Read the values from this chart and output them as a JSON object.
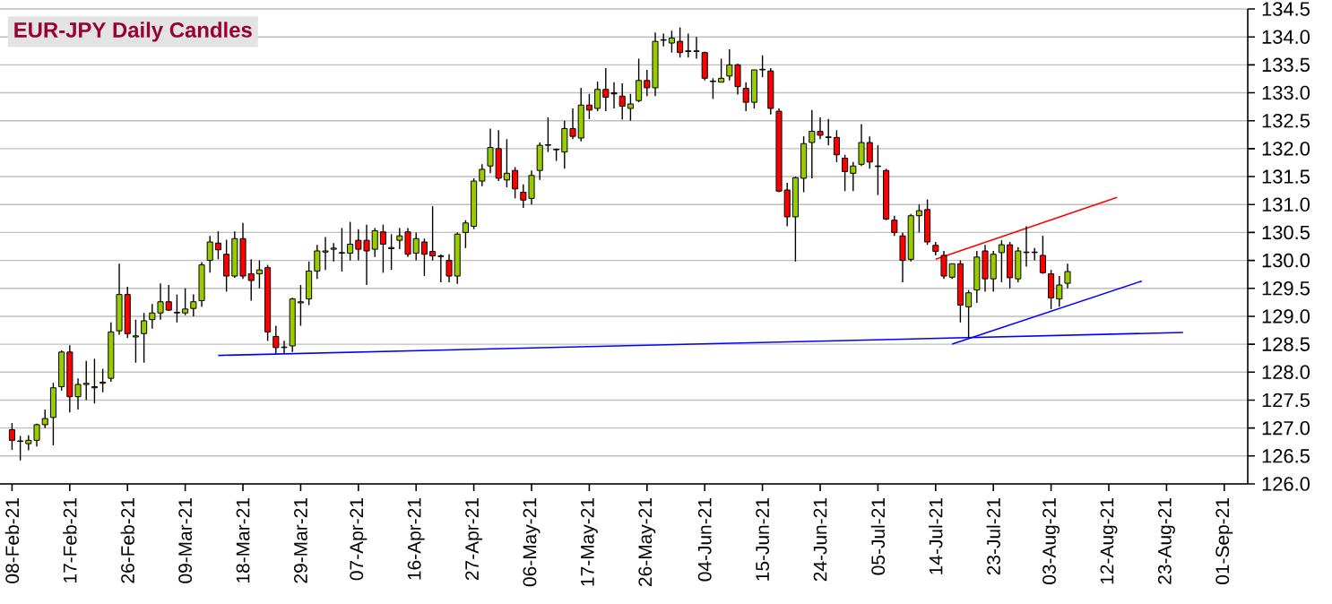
{
  "chart_data": {
    "type": "candlestick",
    "title": "EUR-JPY Daily Candles",
    "categories": [
      "08-Feb-21",
      null,
      null,
      null,
      null,
      null,
      null,
      "17-Feb-21",
      null,
      null,
      null,
      null,
      null,
      null,
      "26-Feb-21",
      null,
      null,
      null,
      null,
      null,
      null,
      "09-Mar-21",
      null,
      null,
      null,
      null,
      null,
      null,
      "18-Mar-21",
      null,
      null,
      null,
      null,
      null,
      null,
      "29-Mar-21",
      null,
      null,
      null,
      null,
      null,
      null,
      "07-Apr-21",
      null,
      null,
      null,
      null,
      null,
      null,
      "16-Apr-21",
      null,
      null,
      null,
      null,
      null,
      null,
      "27-Apr-21",
      null,
      null,
      null,
      null,
      null,
      null,
      "06-May-21",
      null,
      null,
      null,
      null,
      null,
      null,
      "17-May-21",
      null,
      null,
      null,
      null,
      null,
      null,
      "26-May-21",
      null,
      null,
      null,
      null,
      null,
      null,
      "04-Jun-21",
      null,
      null,
      null,
      null,
      null,
      null,
      "15-Jun-21",
      null,
      null,
      null,
      null,
      null,
      null,
      "24-Jun-21",
      null,
      null,
      null,
      null,
      null,
      null,
      "05-Jul-21",
      null,
      null,
      null,
      null,
      null,
      null,
      "14-Jul-21",
      null,
      null,
      null,
      null,
      null,
      null,
      "23-Jul-21",
      null,
      null,
      null,
      null,
      null,
      null,
      "03-Aug-21",
      null,
      null,
      null,
      null,
      null,
      null,
      "12-Aug-21",
      null,
      null,
      null,
      null,
      null,
      null,
      "23-Aug-21",
      null,
      null,
      null,
      null,
      null,
      null,
      "01-Sep-21"
    ],
    "ohlc": [
      [
        126.97,
        127.09,
        126.61,
        126.78
      ],
      [
        126.76,
        126.86,
        126.42,
        126.77
      ],
      [
        126.72,
        126.87,
        126.6,
        126.78
      ],
      [
        126.78,
        127.08,
        126.67,
        127.06
      ],
      [
        127.06,
        127.33,
        127.0,
        127.17
      ],
      [
        127.19,
        127.81,
        126.69,
        127.72
      ],
      [
        127.74,
        128.39,
        127.67,
        128.36
      ],
      [
        128.36,
        128.48,
        127.28,
        127.56
      ],
      [
        127.56,
        127.89,
        127.33,
        127.78
      ],
      [
        127.78,
        128.2,
        127.5,
        127.8
      ],
      [
        127.72,
        128.24,
        127.44,
        127.74
      ],
      [
        127.8,
        128.06,
        127.64,
        127.82
      ],
      [
        127.89,
        128.89,
        127.83,
        128.72
      ],
      [
        128.74,
        129.94,
        128.67,
        129.39
      ],
      [
        129.39,
        129.53,
        128.61,
        128.69
      ],
      [
        128.63,
        128.94,
        128.17,
        128.65
      ],
      [
        128.69,
        129.06,
        128.17,
        128.92
      ],
      [
        128.94,
        129.22,
        128.78,
        129.06
      ],
      [
        129.06,
        129.59,
        128.94,
        129.26
      ],
      [
        129.26,
        129.56,
        129.1,
        129.11
      ],
      [
        129.06,
        129.39,
        128.89,
        129.07
      ],
      [
        129.06,
        129.5,
        129.02,
        129.13
      ],
      [
        129.14,
        129.39,
        129.0,
        129.26
      ],
      [
        129.28,
        129.97,
        129.17,
        129.92
      ],
      [
        130.0,
        130.44,
        129.78,
        130.33
      ],
      [
        130.31,
        130.52,
        130.02,
        130.19
      ],
      [
        130.11,
        130.37,
        129.44,
        129.72
      ],
      [
        129.72,
        130.52,
        129.69,
        130.39
      ],
      [
        130.39,
        130.67,
        129.67,
        129.72
      ],
      [
        129.76,
        130.02,
        129.28,
        129.64
      ],
      [
        129.76,
        130.0,
        129.5,
        129.83
      ],
      [
        129.87,
        129.92,
        128.56,
        128.72
      ],
      [
        128.64,
        128.83,
        128.33,
        128.44
      ],
      [
        128.45,
        128.56,
        128.33,
        128.44
      ],
      [
        128.47,
        129.33,
        128.36,
        129.31
      ],
      [
        129.24,
        129.56,
        128.83,
        129.26
      ],
      [
        129.31,
        129.98,
        129.2,
        129.81
      ],
      [
        129.81,
        130.28,
        129.67,
        130.17
      ],
      [
        130.15,
        130.42,
        129.83,
        130.17
      ],
      [
        130.2,
        130.31,
        129.98,
        130.22
      ],
      [
        130.14,
        130.58,
        129.8,
        130.13
      ],
      [
        130.13,
        130.69,
        130.0,
        130.29
      ],
      [
        130.36,
        130.56,
        130.0,
        130.2
      ],
      [
        130.36,
        130.64,
        129.56,
        130.17
      ],
      [
        130.2,
        130.58,
        130.06,
        130.53
      ],
      [
        130.51,
        130.64,
        129.78,
        130.29
      ],
      [
        130.21,
        130.47,
        129.83,
        130.23
      ],
      [
        130.36,
        130.58,
        130.2,
        130.44
      ],
      [
        130.51,
        130.58,
        130.06,
        130.11
      ],
      [
        130.13,
        130.5,
        130.0,
        130.39
      ],
      [
        130.33,
        130.39,
        129.72,
        130.11
      ],
      [
        130.16,
        130.97,
        130.0,
        130.08
      ],
      [
        130.08,
        130.11,
        129.61,
        130.07
      ],
      [
        130.0,
        130.11,
        129.61,
        129.72
      ],
      [
        129.72,
        130.5,
        129.58,
        130.47
      ],
      [
        130.5,
        130.72,
        130.22,
        130.67
      ],
      [
        130.61,
        131.47,
        130.56,
        131.42
      ],
      [
        131.42,
        131.72,
        131.33,
        131.63
      ],
      [
        131.69,
        132.36,
        131.56,
        132.02
      ],
      [
        132.0,
        132.33,
        131.42,
        131.47
      ],
      [
        131.44,
        132.17,
        131.31,
        131.56
      ],
      [
        131.61,
        131.67,
        131.11,
        131.28
      ],
      [
        131.22,
        131.36,
        130.94,
        131.08
      ],
      [
        131.11,
        131.61,
        131.0,
        131.52
      ],
      [
        131.61,
        132.11,
        131.44,
        132.06
      ],
      [
        132.06,
        132.56,
        131.94,
        132.07
      ],
      [
        131.98,
        132.0,
        131.78,
        131.99
      ],
      [
        131.94,
        132.5,
        131.64,
        132.36
      ],
      [
        132.36,
        132.72,
        132.17,
        132.22
      ],
      [
        132.19,
        133.09,
        132.13,
        132.78
      ],
      [
        132.78,
        132.98,
        132.53,
        132.69
      ],
      [
        132.72,
        133.2,
        132.67,
        133.06
      ],
      [
        133.06,
        133.44,
        132.67,
        132.92
      ],
      [
        133.0,
        133.19,
        132.72,
        132.98
      ],
      [
        132.94,
        133.17,
        132.52,
        132.76
      ],
      [
        132.72,
        132.98,
        132.5,
        132.8
      ],
      [
        132.86,
        133.61,
        132.83,
        133.22
      ],
      [
        133.22,
        133.41,
        132.94,
        133.09
      ],
      [
        133.09,
        134.08,
        132.94,
        133.92
      ],
      [
        133.94,
        134.06,
        133.83,
        133.95
      ],
      [
        133.89,
        134.11,
        133.72,
        133.98
      ],
      [
        133.92,
        134.17,
        133.63,
        133.72
      ],
      [
        133.75,
        134.06,
        133.63,
        133.74
      ],
      [
        133.74,
        134.0,
        133.61,
        133.75
      ],
      [
        133.72,
        133.74,
        133.22,
        133.26
      ],
      [
        133.2,
        133.26,
        132.89,
        133.21
      ],
      [
        133.19,
        133.61,
        133.19,
        133.26
      ],
      [
        133.3,
        133.78,
        133.22,
        133.5
      ],
      [
        133.5,
        133.52,
        132.97,
        133.11
      ],
      [
        133.08,
        133.19,
        132.67,
        132.83
      ],
      [
        132.83,
        133.41,
        132.72,
        133.41
      ],
      [
        133.41,
        133.67,
        133.28,
        133.42
      ],
      [
        133.39,
        133.44,
        132.61,
        132.72
      ],
      [
        132.67,
        132.72,
        131.22,
        131.24
      ],
      [
        131.26,
        131.39,
        130.61,
        130.78
      ],
      [
        130.78,
        131.5,
        129.98,
        131.48
      ],
      [
        131.47,
        132.22,
        131.22,
        132.09
      ],
      [
        132.11,
        132.69,
        131.47,
        132.31
      ],
      [
        132.31,
        132.56,
        132.17,
        132.24
      ],
      [
        132.2,
        132.53,
        132.06,
        132.21
      ],
      [
        132.2,
        132.33,
        131.76,
        131.89
      ],
      [
        131.83,
        131.89,
        131.24,
        131.59
      ],
      [
        131.56,
        131.76,
        131.24,
        131.69
      ],
      [
        131.72,
        132.44,
        131.69,
        132.11
      ],
      [
        132.11,
        132.22,
        131.64,
        131.76
      ],
      [
        131.69,
        132.06,
        131.17,
        131.68
      ],
      [
        131.61,
        131.64,
        130.72,
        130.74
      ],
      [
        130.72,
        130.8,
        130.44,
        130.5
      ],
      [
        130.44,
        130.5,
        129.61,
        130.0
      ],
      [
        130.02,
        130.83,
        129.98,
        130.8
      ],
      [
        130.8,
        131.0,
        130.5,
        130.89
      ],
      [
        130.91,
        131.09,
        130.28,
        130.33
      ],
      [
        130.27,
        130.33,
        130.09,
        130.16
      ],
      [
        130.09,
        130.17,
        129.67,
        129.72
      ],
      [
        129.7,
        129.94,
        129.67,
        129.94
      ],
      [
        129.94,
        130.0,
        128.89,
        129.2
      ],
      [
        129.17,
        129.47,
        128.61,
        129.42
      ],
      [
        129.47,
        130.17,
        129.24,
        130.06
      ],
      [
        130.17,
        130.28,
        129.44,
        129.67
      ],
      [
        129.67,
        130.17,
        129.44,
        130.11
      ],
      [
        130.14,
        130.36,
        129.61,
        130.28
      ],
      [
        130.28,
        130.33,
        129.5,
        129.69
      ],
      [
        129.67,
        130.24,
        129.61,
        130.17
      ],
      [
        130.14,
        130.61,
        129.89,
        130.15
      ],
      [
        130.15,
        130.22,
        130.0,
        130.14
      ],
      [
        130.09,
        130.44,
        129.76,
        129.78
      ],
      [
        129.76,
        129.83,
        129.13,
        129.33
      ],
      [
        129.31,
        129.72,
        129.17,
        129.56
      ],
      [
        129.59,
        129.94,
        129.5,
        129.8
      ],
      null,
      null,
      null,
      null,
      null,
      null,
      null,
      null,
      null,
      null,
      null,
      null,
      null,
      null,
      null,
      null,
      null,
      null,
      null
    ],
    "colors": [
      "#ff0000",
      "#99cc00",
      "#99cc00",
      "#99cc00",
      "#99cc00",
      "#99cc00",
      "#99cc00",
      "#ff0000",
      "#99cc00",
      "#99cc00",
      "#99cc00",
      "#99cc00",
      "#99cc00",
      "#99cc00",
      "#ff0000",
      "#99cc00",
      "#99cc00",
      "#99cc00",
      "#99cc00",
      "#ff0000",
      "#99cc00",
      "#99cc00",
      "#99cc00",
      "#99cc00",
      "#99cc00",
      "#ff0000",
      "#ff0000",
      "#99cc00",
      "#ff0000",
      "#ff0000",
      "#99cc00",
      "#ff0000",
      "#ff0000",
      "#ff0000",
      "#99cc00",
      "#99cc00",
      "#99cc00",
      "#99cc00",
      "#99cc00",
      "#99cc00",
      "#ff0000",
      "#99cc00",
      "#ff0000",
      "#ff0000",
      "#99cc00",
      "#ff0000",
      "#99cc00",
      "#99cc00",
      "#ff0000",
      "#99cc00",
      "#ff0000",
      "#ff0000",
      "#ff0000",
      "#ff0000",
      "#99cc00",
      "#99cc00",
      "#99cc00",
      "#99cc00",
      "#99cc00",
      "#ff0000",
      "#99cc00",
      "#ff0000",
      "#ff0000",
      "#99cc00",
      "#99cc00",
      "#99cc00",
      "#99cc00",
      "#99cc00",
      "#ff0000",
      "#99cc00",
      "#ff0000",
      "#99cc00",
      "#ff0000",
      "#ff0000",
      "#ff0000",
      "#99cc00",
      "#99cc00",
      "#ff0000",
      "#99cc00",
      "#99cc00",
      "#99cc00",
      "#ff0000",
      "#ff0000",
      "#99cc00",
      "#ff0000",
      "#99cc00",
      "#99cc00",
      "#99cc00",
      "#ff0000",
      "#ff0000",
      "#99cc00",
      "#99cc00",
      "#ff0000",
      "#ff0000",
      "#ff0000",
      "#99cc00",
      "#99cc00",
      "#99cc00",
      "#ff0000",
      "#99cc00",
      "#ff0000",
      "#ff0000",
      "#99cc00",
      "#99cc00",
      "#ff0000",
      "#ff0000",
      "#ff0000",
      "#ff0000",
      "#ff0000",
      "#99cc00",
      "#99cc00",
      "#ff0000",
      "#ff0000",
      "#ff0000",
      "#99cc00",
      "#ff0000",
      "#99cc00",
      "#99cc00",
      "#ff0000",
      "#99cc00",
      "#99cc00",
      "#ff0000",
      "#99cc00",
      "#99cc00",
      "#ff0000",
      "#ff0000",
      "#ff0000",
      "#99cc00",
      "#99cc00",
      null,
      null,
      null,
      null,
      null,
      null,
      null,
      null,
      null,
      null,
      null,
      null,
      null,
      null,
      null,
      null,
      null,
      null,
      null
    ],
    "series": [
      {
        "type": "line",
        "color": "#0000ff",
        "values": [
          null,
          null,
          null,
          null,
          null,
          null,
          null,
          null,
          null,
          null,
          null,
          null,
          null,
          null,
          null,
          null,
          null,
          null,
          null,
          null,
          null,
          null,
          null,
          null,
          null,
          128.3,
          null,
          null,
          null,
          null,
          null,
          null,
          null,
          null,
          null,
          null,
          null,
          null,
          null,
          null,
          null,
          null,
          null,
          null,
          null,
          null,
          null,
          null,
          null,
          null,
          null,
          null,
          null,
          null,
          null,
          null,
          null,
          null,
          null,
          null,
          null,
          null,
          null,
          null,
          null,
          null,
          null,
          null,
          null,
          null,
          null,
          null,
          null,
          null,
          null,
          null,
          null,
          null,
          null,
          null,
          null,
          null,
          null,
          null,
          null,
          null,
          null,
          null,
          null,
          null,
          null,
          null,
          null,
          null,
          null,
          null,
          null,
          null,
          null,
          null,
          null,
          null,
          null,
          null,
          null,
          null,
          null,
          null,
          null,
          null,
          null,
          null,
          null,
          null,
          null,
          null,
          null,
          null,
          null,
          null,
          null,
          null,
          null,
          null,
          null,
          null,
          null,
          null,
          null,
          null,
          null,
          null,
          null,
          null,
          null,
          null,
          null,
          null,
          null,
          null,
          null,
          null,
          128.71,
          null,
          null,
          null,
          null,
          null
        ]
      },
      {
        "type": "line",
        "color": "#0000ff",
        "values": [
          null,
          null,
          null,
          null,
          null,
          null,
          null,
          null,
          null,
          null,
          null,
          null,
          null,
          null,
          null,
          null,
          null,
          null,
          null,
          null,
          null,
          null,
          null,
          null,
          null,
          null,
          null,
          null,
          null,
          null,
          null,
          null,
          null,
          null,
          null,
          null,
          null,
          null,
          null,
          null,
          null,
          null,
          null,
          null,
          null,
          null,
          null,
          null,
          null,
          null,
          null,
          null,
          null,
          null,
          null,
          null,
          null,
          null,
          null,
          null,
          null,
          null,
          null,
          null,
          null,
          null,
          null,
          null,
          null,
          null,
          null,
          null,
          null,
          null,
          null,
          null,
          null,
          null,
          null,
          null,
          null,
          null,
          null,
          null,
          null,
          null,
          null,
          null,
          null,
          null,
          null,
          null,
          null,
          null,
          null,
          null,
          null,
          null,
          null,
          null,
          null,
          null,
          null,
          null,
          null,
          null,
          null,
          null,
          null,
          null,
          null,
          null,
          null,
          null,
          128.5,
          null,
          null,
          null,
          null,
          null,
          null,
          null,
          null,
          null,
          null,
          null,
          null,
          null,
          null,
          null,
          null,
          null,
          null,
          null,
          null,
          null,
          null,
          129.63,
          null,
          null,
          null,
          null,
          null,
          null,
          null,
          null,
          null,
          null
        ]
      },
      {
        "type": "line",
        "color": "#ff0000",
        "values": [
          null,
          null,
          null,
          null,
          null,
          null,
          null,
          null,
          null,
          null,
          null,
          null,
          null,
          null,
          null,
          null,
          null,
          null,
          null,
          null,
          null,
          null,
          null,
          null,
          null,
          null,
          null,
          null,
          null,
          null,
          null,
          null,
          null,
          null,
          null,
          null,
          null,
          null,
          null,
          null,
          null,
          null,
          null,
          null,
          null,
          null,
          null,
          null,
          null,
          null,
          null,
          null,
          null,
          null,
          null,
          null,
          null,
          null,
          null,
          null,
          null,
          null,
          null,
          null,
          null,
          null,
          null,
          null,
          null,
          null,
          null,
          null,
          null,
          null,
          null,
          null,
          null,
          null,
          null,
          null,
          null,
          null,
          null,
          null,
          null,
          null,
          null,
          null,
          null,
          null,
          null,
          null,
          null,
          null,
          null,
          null,
          null,
          null,
          null,
          null,
          null,
          null,
          null,
          null,
          null,
          null,
          null,
          null,
          null,
          null,
          null,
          null,
          130.02,
          null,
          null,
          null,
          null,
          null,
          null,
          null,
          null,
          null,
          null,
          null,
          null,
          null,
          null,
          null,
          null,
          null,
          null,
          null,
          null,
          null,
          131.13,
          null,
          null,
          null,
          null,
          null,
          null,
          null,
          null,
          null,
          null,
          null,
          null,
          null
        ]
      }
    ],
    "ylim": [
      126.0,
      134.5
    ],
    "yticks": [
      {
        "value": 126.0,
        "label": "126.0"
      },
      {
        "value": 126.5,
        "label": "126.5"
      },
      {
        "value": 127.0,
        "label": "127.0"
      },
      {
        "value": 127.5,
        "label": "127.5"
      },
      {
        "value": 128.0,
        "label": "128.0"
      },
      {
        "value": 128.5,
        "label": "128.5"
      },
      {
        "value": 129.0,
        "label": "129.0"
      },
      {
        "value": 129.5,
        "label": "129.5"
      },
      {
        "value": 130.0,
        "label": "130.0"
      },
      {
        "value": 130.5,
        "label": "130.5"
      },
      {
        "value": 131.0,
        "label": "131.0"
      },
      {
        "value": 131.5,
        "label": "131.5"
      },
      {
        "value": 132.0,
        "label": "132.0"
      },
      {
        "value": 132.5,
        "label": "132.5"
      },
      {
        "value": 133.0,
        "label": "133.0"
      },
      {
        "value": 133.5,
        "label": "133.5"
      },
      {
        "value": 134.0,
        "label": "134.0"
      },
      {
        "value": 134.5,
        "label": "134.5"
      }
    ],
    "grid": "y"
  }
}
